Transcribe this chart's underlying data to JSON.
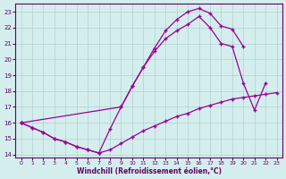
{
  "xlabel": "Windchill (Refroidissement éolien,°C)",
  "bg_color": "#d4eeed",
  "grid_color": "#b0d0d0",
  "line_color": "#990099",
  "xlim": [
    -0.5,
    23.5
  ],
  "ylim": [
    13.8,
    23.5
  ],
  "yticks": [
    14,
    15,
    16,
    17,
    18,
    19,
    20,
    21,
    22,
    23
  ],
  "xticks": [
    0,
    1,
    2,
    3,
    4,
    5,
    6,
    7,
    8,
    9,
    10,
    11,
    12,
    13,
    14,
    15,
    16,
    17,
    18,
    19,
    20,
    21,
    22,
    23
  ],
  "line1_x": [
    0,
    1,
    2,
    3,
    4,
    5,
    6,
    7,
    8,
    9,
    10,
    11,
    12,
    13,
    14,
    15,
    16,
    17,
    18,
    19,
    20,
    21,
    22,
    23
  ],
  "line1_y": [
    16.0,
    15.7,
    15.4,
    15.0,
    14.8,
    14.5,
    14.3,
    14.1,
    14.3,
    14.7,
    15.1,
    15.5,
    15.8,
    16.1,
    16.4,
    16.6,
    16.9,
    17.1,
    17.3,
    17.5,
    17.6,
    17.7,
    17.8,
    17.9
  ],
  "line2_x": [
    0,
    1,
    2,
    3,
    4,
    5,
    6,
    7,
    8,
    9,
    10,
    11,
    12,
    13,
    14,
    15,
    16,
    17,
    18,
    19,
    20,
    21,
    22
  ],
  "line2_y": [
    16.0,
    15.7,
    15.4,
    15.0,
    14.8,
    14.5,
    14.3,
    14.1,
    15.6,
    17.0,
    18.3,
    19.5,
    20.5,
    21.3,
    21.8,
    22.2,
    22.7,
    22.0,
    21.0,
    20.8,
    18.5,
    16.8,
    18.5
  ],
  "line3_x": [
    0,
    9,
    10,
    11,
    12,
    13,
    14,
    15,
    16,
    17,
    18,
    19,
    20
  ],
  "line3_y": [
    16.0,
    17.0,
    18.3,
    19.5,
    20.7,
    21.8,
    22.5,
    23.0,
    23.2,
    22.9,
    22.1,
    21.9,
    20.8
  ]
}
